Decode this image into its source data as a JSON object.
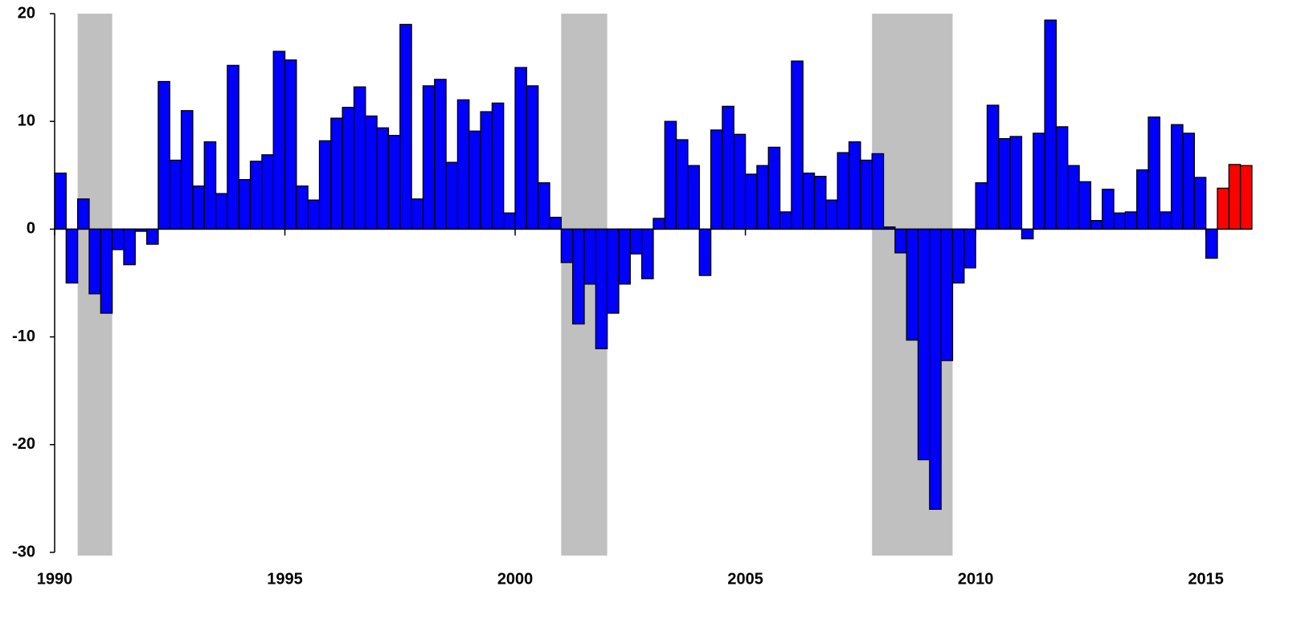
{
  "chart_data": {
    "type": "bar",
    "x": [
      1990,
      1990.25,
      1990.5,
      1990.75,
      1991,
      1991.25,
      1991.5,
      1991.75,
      1992,
      1992.25,
      1992.5,
      1992.75,
      1993,
      1993.25,
      1993.5,
      1993.75,
      1994,
      1994.25,
      1994.5,
      1994.75,
      1995,
      1995.25,
      1995.5,
      1995.75,
      1996,
      1996.25,
      1996.5,
      1996.75,
      1997,
      1997.25,
      1997.5,
      1997.75,
      1998,
      1998.25,
      1998.5,
      1998.75,
      1999,
      1999.25,
      1999.5,
      1999.75,
      2000,
      2000.25,
      2000.5,
      2000.75,
      2001,
      2001.25,
      2001.5,
      2001.75,
      2002,
      2002.25,
      2002.5,
      2002.75,
      2003,
      2003.25,
      2003.5,
      2003.75,
      2004,
      2004.25,
      2004.5,
      2004.75,
      2005,
      2005.25,
      2005.5,
      2005.75,
      2006,
      2006.25,
      2006.5,
      2006.75,
      2007,
      2007.25,
      2007.5,
      2007.75,
      2008,
      2008.25,
      2008.5,
      2008.75,
      2009,
      2009.25,
      2009.5,
      2009.75,
      2010,
      2010.25,
      2010.5,
      2010.75,
      2011,
      2011.25,
      2011.5,
      2011.75,
      2012,
      2012.25,
      2012.5,
      2012.75,
      2013,
      2013.25,
      2013.5,
      2013.75,
      2014,
      2014.25,
      2014.5,
      2014.75,
      2015,
      2015.25,
      2015.5,
      2015.75
    ],
    "series": [
      {
        "color": "#0000ff",
        "values": [
          5.2,
          -5.0,
          2.8,
          -6.0,
          -7.8,
          -1.9,
          -3.3,
          -0.2,
          -1.4,
          13.7,
          6.4,
          11.0,
          4.0,
          8.1,
          3.3,
          15.2,
          4.6,
          6.3,
          6.9,
          16.5,
          15.7,
          4.0,
          2.7,
          8.2,
          10.3,
          11.3,
          13.2,
          10.5,
          9.4,
          8.7,
          19.0,
          2.8,
          13.3,
          13.9,
          6.2,
          12.0,
          9.1,
          10.9,
          11.7,
          1.5,
          15.0,
          13.3,
          4.3,
          1.1,
          -3.1,
          -8.8,
          -5.1,
          -11.1,
          -7.8,
          -5.1,
          -2.3,
          -4.6,
          1.0,
          10.0,
          8.3,
          5.9,
          -4.3,
          9.2,
          11.4,
          8.8,
          5.1,
          5.9,
          7.6,
          1.6,
          15.6,
          5.2,
          4.9,
          2.7,
          7.1,
          8.1,
          6.4,
          7.0,
          0.2,
          -2.2,
          -10.3,
          -21.4,
          -26.0,
          -12.2,
          -5.0,
          -3.6,
          4.3,
          11.5,
          8.4,
          8.6,
          -0.9,
          8.9,
          19.4,
          9.5,
          5.9,
          4.4,
          0.8,
          3.7,
          1.5,
          1.6,
          5.5,
          10.4,
          1.6,
          9.7,
          8.9,
          4.8,
          -2.7,
          null,
          null,
          null
        ]
      },
      {
        "color": "#ff0000",
        "values": [
          null,
          null,
          null,
          null,
          null,
          null,
          null,
          null,
          null,
          null,
          null,
          null,
          null,
          null,
          null,
          null,
          null,
          null,
          null,
          null,
          null,
          null,
          null,
          null,
          null,
          null,
          null,
          null,
          null,
          null,
          null,
          null,
          null,
          null,
          null,
          null,
          null,
          null,
          null,
          null,
          null,
          null,
          null,
          null,
          null,
          null,
          null,
          null,
          null,
          null,
          null,
          null,
          null,
          null,
          null,
          null,
          null,
          null,
          null,
          null,
          null,
          null,
          null,
          null,
          null,
          null,
          null,
          null,
          null,
          null,
          null,
          null,
          null,
          null,
          null,
          null,
          null,
          null,
          null,
          null,
          null,
          null,
          null,
          null,
          null,
          null,
          null,
          null,
          null,
          null,
          null,
          null,
          null,
          null,
          null,
          null,
          null,
          null,
          null,
          null,
          null,
          3.8,
          6.0,
          5.9
        ]
      }
    ],
    "shaded_periods": [
      [
        1990.5,
        1991.25
      ],
      [
        2001,
        2002
      ],
      [
        2007.75,
        2009.5
      ]
    ],
    "shade_color": "#c0c0c0",
    "xlim": [
      1990,
      2016
    ],
    "xticks": [
      1990,
      1995,
      2000,
      2005,
      2010,
      2015
    ],
    "ylim": [
      -30,
      20
    ],
    "yticks": [
      -30,
      -20,
      -10,
      0,
      10,
      20
    ]
  }
}
